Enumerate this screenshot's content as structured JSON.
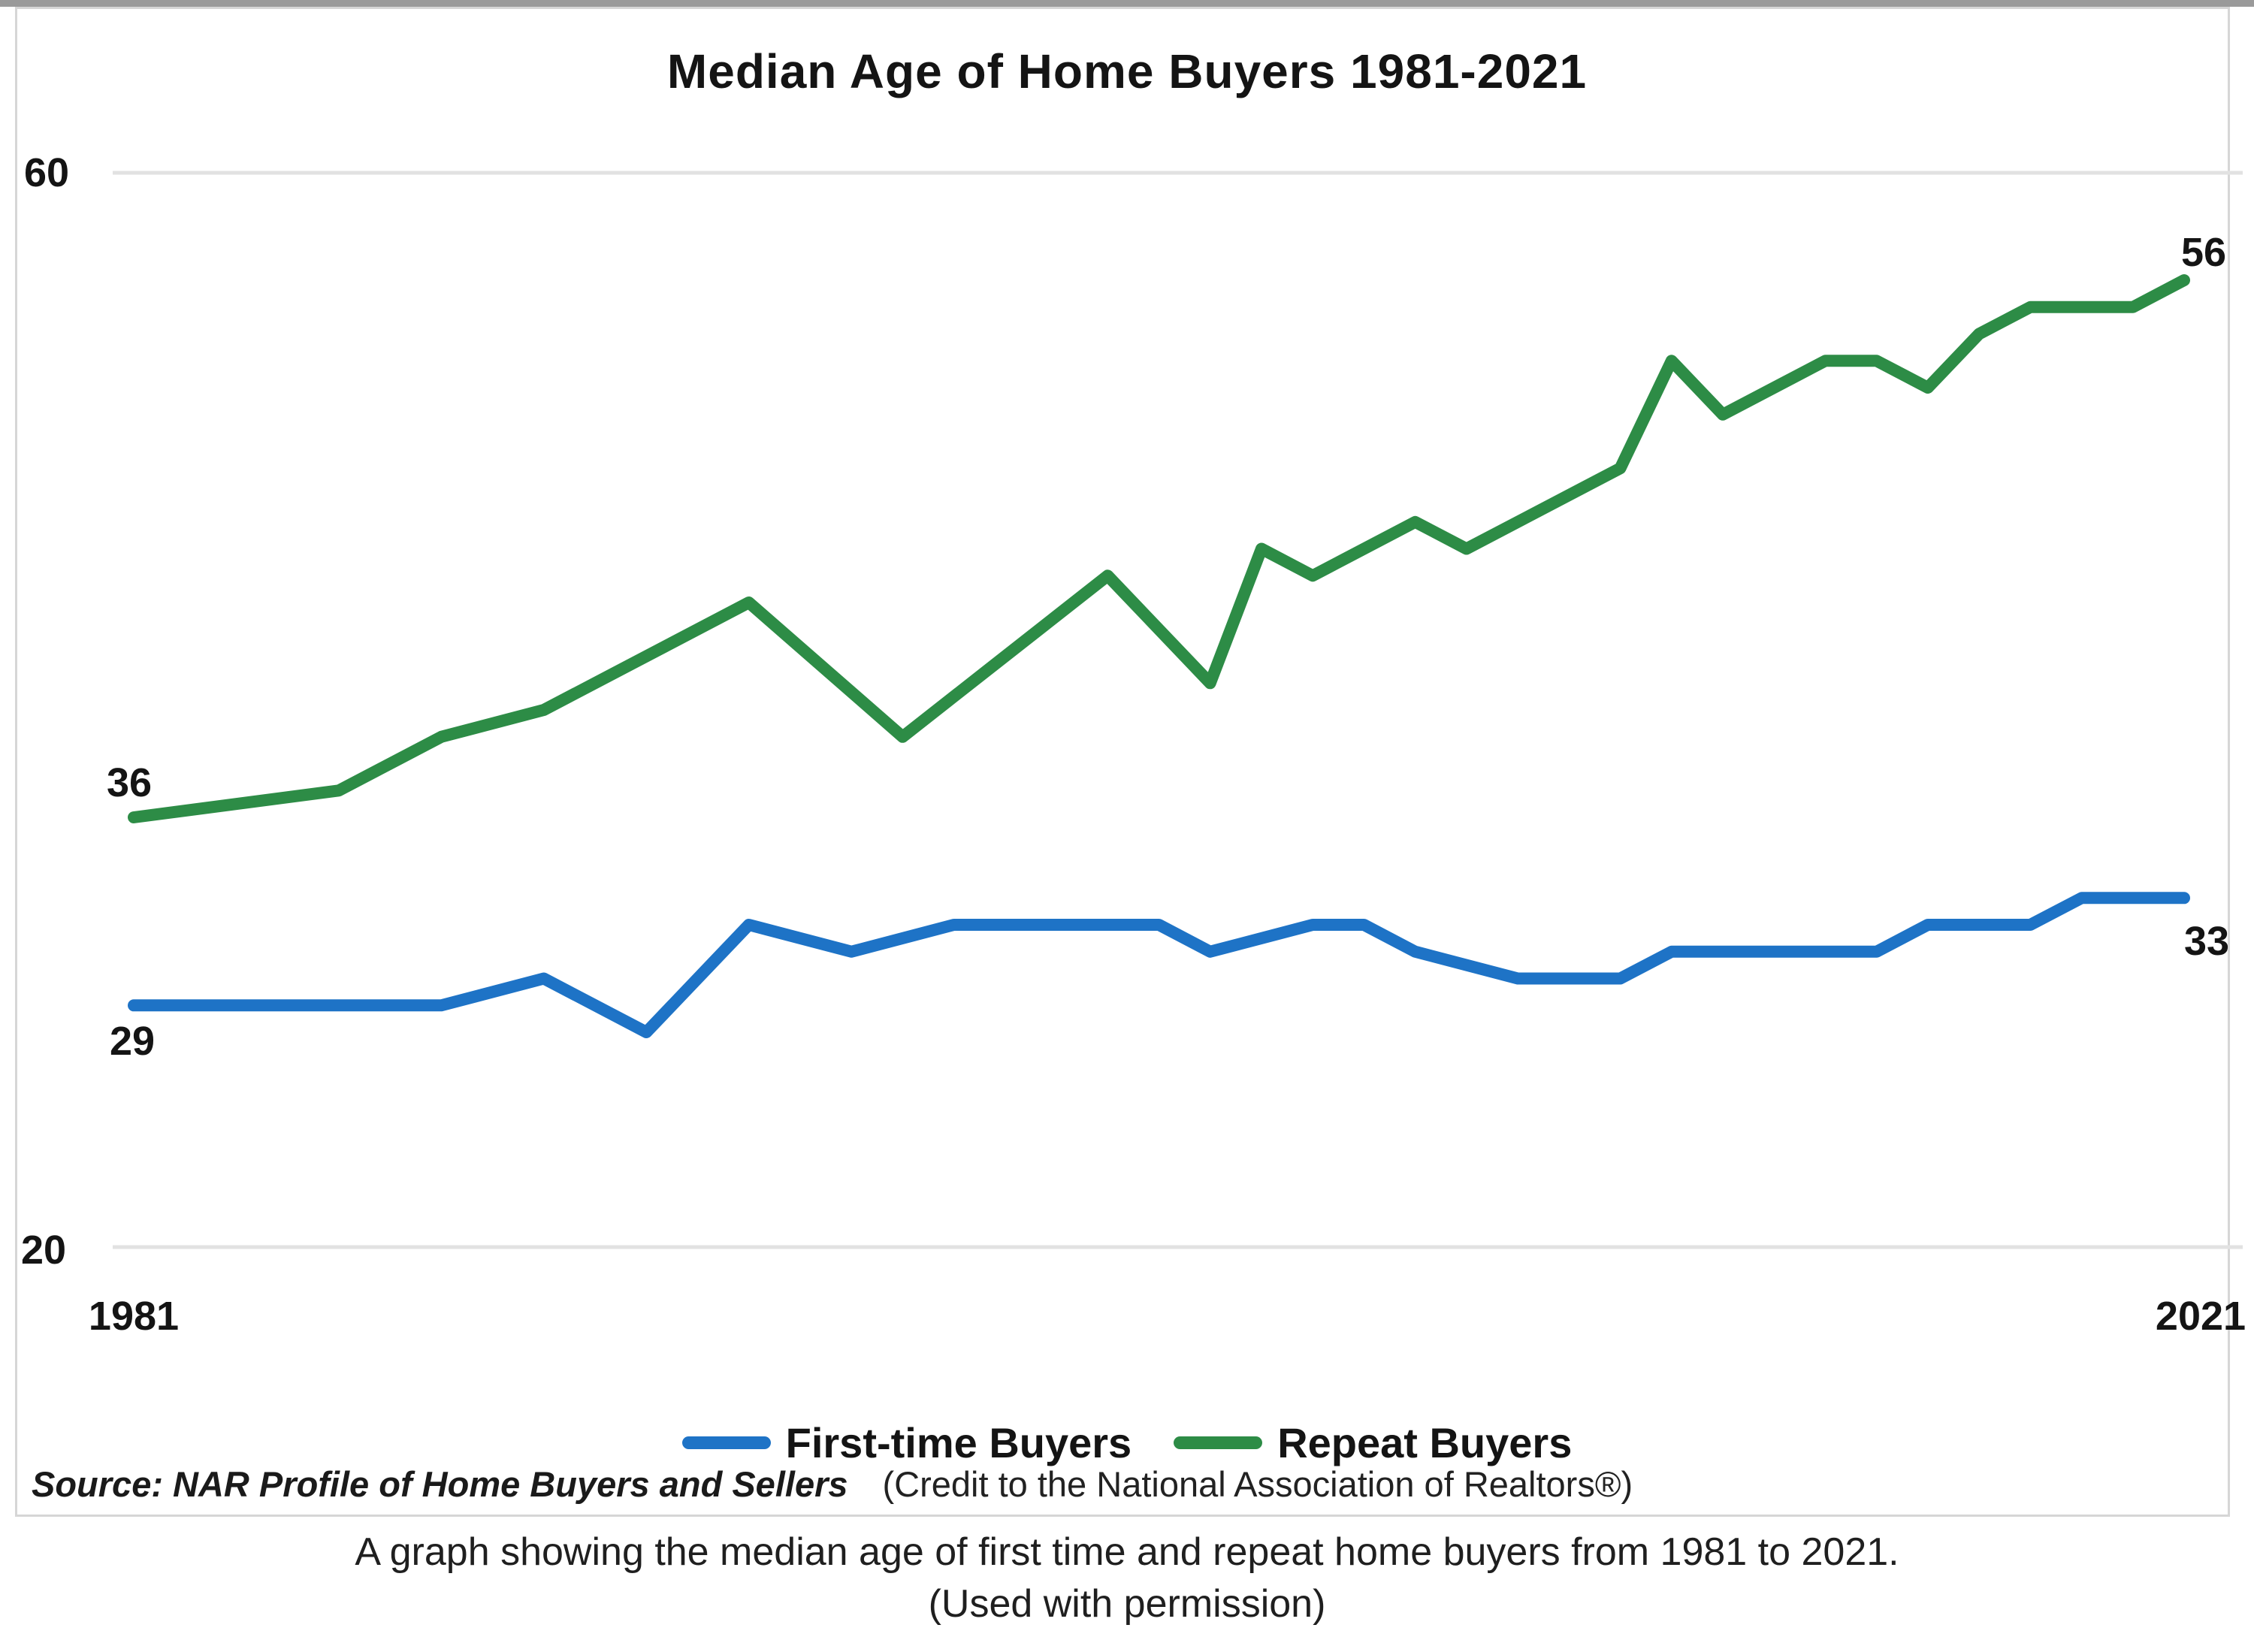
{
  "page": {
    "title": "Median Age of Home Buyers 1981-2021"
  },
  "y_axis": {
    "top": "60",
    "bottom": "20"
  },
  "x_axis": {
    "left": "1981",
    "right": "2021"
  },
  "endpoint_labels": {
    "repeat": {
      "start": "36",
      "end": "56"
    },
    "first_time": {
      "start": "29",
      "end": "33"
    }
  },
  "legend": {
    "first_time": "First-time Buyers",
    "repeat": "Repeat Buyers"
  },
  "source": {
    "text": "Source: NAR Profile of Home Buyers and Sellers",
    "credit": "(Credit to the National Association of Realtors®)"
  },
  "caption": {
    "line1": "A graph showing the median age of first time and repeat home buyers from 1981 to 2021.",
    "line2": "(Used with permission)"
  },
  "colors": {
    "first_time": "#1E73C6",
    "repeat": "#2D8C46",
    "grid": "#E2E2E2",
    "frame": "#D6D6D6",
    "text": "#1A1A1A"
  },
  "chart_data": {
    "type": "line",
    "title": "Median Age of Home Buyers 1981-2021",
    "xlabel": "",
    "ylabel": "",
    "xlim": [
      1981,
      2021
    ],
    "ylim": [
      20,
      60
    ],
    "grid_values": [
      60,
      20
    ],
    "grid": "horizontal-only",
    "legend_position": "bottom",
    "series": [
      {
        "name": "First-time Buyers",
        "color_key": "first_time",
        "start_label": "29",
        "end_label": "33",
        "points": [
          [
            1981,
            29
          ],
          [
            1987,
            29
          ],
          [
            1989,
            30
          ],
          [
            1991,
            28
          ],
          [
            1993,
            32
          ],
          [
            1995,
            31
          ],
          [
            1997,
            32
          ],
          [
            2001,
            32
          ],
          [
            2002,
            31
          ],
          [
            2004,
            32
          ],
          [
            2005,
            32
          ],
          [
            2006,
            31
          ],
          [
            2008,
            30
          ],
          [
            2010,
            30
          ],
          [
            2011,
            31
          ],
          [
            2015,
            31
          ],
          [
            2016,
            32
          ],
          [
            2018,
            32
          ],
          [
            2019,
            33
          ],
          [
            2021,
            33
          ]
        ]
      },
      {
        "name": "Repeat Buyers",
        "color_key": "repeat",
        "start_label": "36",
        "end_label": "56",
        "points": [
          [
            1981,
            36
          ],
          [
            1985,
            37
          ],
          [
            1987,
            39
          ],
          [
            1989,
            40
          ],
          [
            1993,
            44
          ],
          [
            1996,
            39
          ],
          [
            2000,
            45
          ],
          [
            2002,
            41
          ],
          [
            2003,
            46
          ],
          [
            2004,
            45
          ],
          [
            2006,
            47
          ],
          [
            2007,
            46
          ],
          [
            2010,
            49
          ],
          [
            2011,
            53
          ],
          [
            2012,
            51
          ],
          [
            2014,
            53
          ],
          [
            2015,
            53
          ],
          [
            2016,
            52
          ],
          [
            2017,
            54
          ],
          [
            2018,
            55
          ],
          [
            2020,
            55
          ],
          [
            2021,
            56
          ]
        ]
      }
    ]
  }
}
